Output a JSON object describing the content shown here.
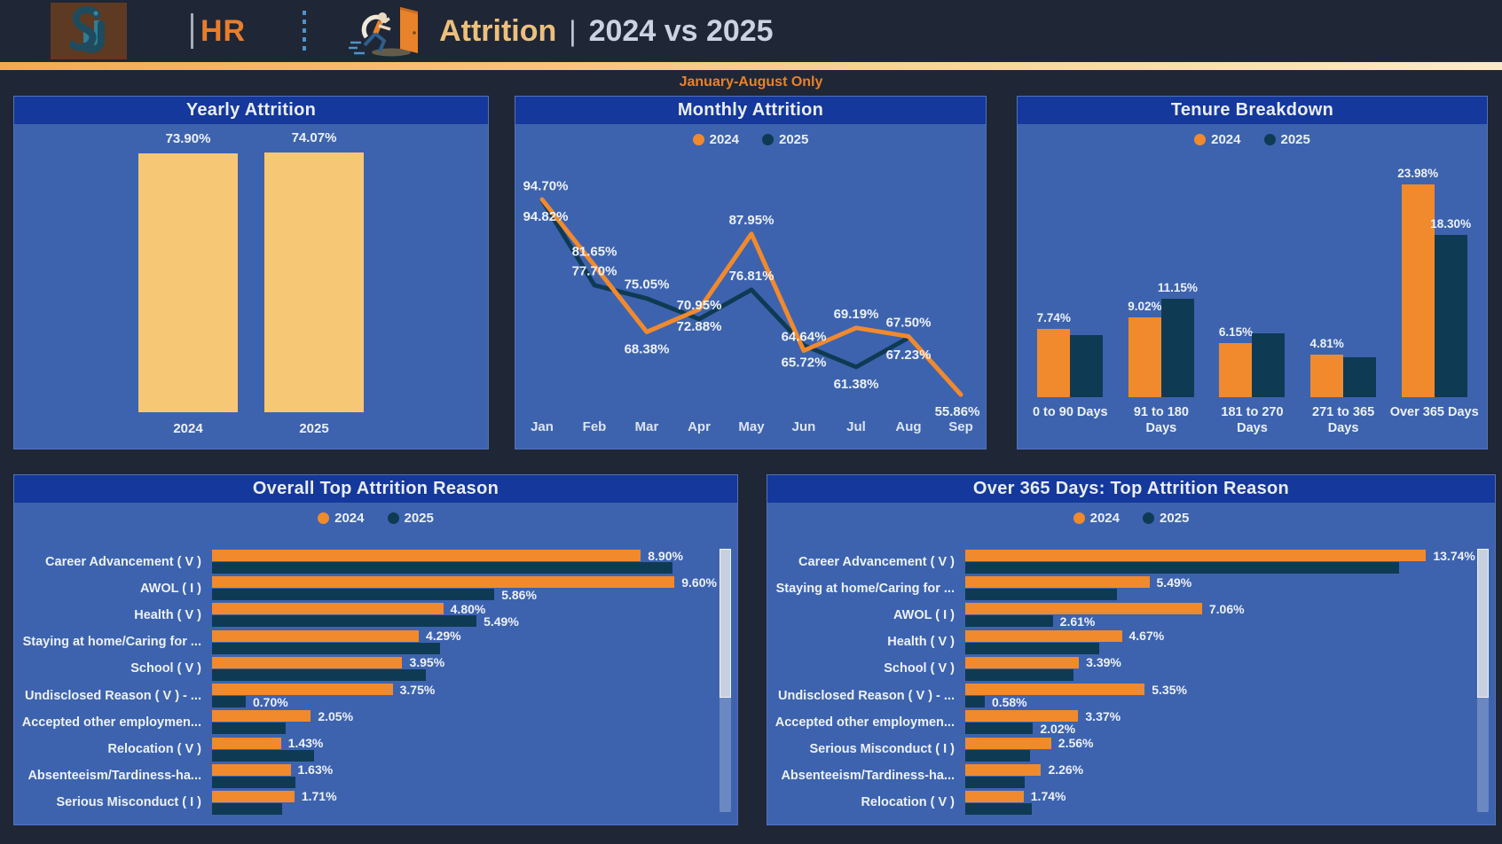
{
  "app": {
    "logo_text": "SJ",
    "department": "HR",
    "title": "Attrition",
    "title_separator": "|",
    "title_comparison": "2024 vs 2025",
    "subtitle": "January-August Only"
  },
  "colors": {
    "background": "#1F2636",
    "panel": "#3D63AF",
    "panel_header": "#14389B",
    "accent_2024": "#F18A2C",
    "accent_2025": "#0E3B53",
    "gold_bar": "#F6C775",
    "gold_strip": "#F6C87E",
    "subtitle_orange": "#E8822B",
    "label_text": "#EDF1F8"
  },
  "legend": {
    "items": [
      {
        "name": "2024",
        "color": "#F18A2C"
      },
      {
        "name": "2025",
        "color": "#0E3B53"
      }
    ]
  },
  "chart_data": [
    {
      "id": "yearly",
      "type": "bar",
      "title": "Yearly Attrition",
      "categories": [
        "2024",
        "2025"
      ],
      "values": [
        73.9,
        74.07
      ],
      "data_labels": [
        "73.90%",
        "74.07%"
      ],
      "bar_color": "#F6C775",
      "ylim": [
        0,
        80
      ],
      "legend": false
    },
    {
      "id": "monthly",
      "type": "line",
      "title": "Monthly Attrition",
      "categories": [
        "Jan",
        "Feb",
        "Mar",
        "Apr",
        "May",
        "Jun",
        "Jul",
        "Aug",
        "Sep"
      ],
      "series": [
        {
          "name": "2024",
          "color": "#F18A2C",
          "values": [
            94.82,
            81.65,
            68.38,
            72.88,
            87.95,
            64.64,
            69.19,
            67.5,
            55.86
          ],
          "data_labels": [
            "94.82%",
            "81.65%",
            "68.38%",
            "72.88%",
            "87.95%",
            "64.64%",
            "69.19%",
            "67.50%",
            "55.86%"
          ]
        },
        {
          "name": "2025",
          "color": "#0E3B53",
          "values": [
            94.7,
            77.7,
            75.05,
            70.95,
            76.81,
            65.72,
            61.38,
            67.23,
            null
          ],
          "data_labels": [
            "94.70%",
            "77.70%",
            "75.05%",
            "70.95%",
            "76.81%",
            "65.72%",
            "61.38%",
            "67.23%",
            ""
          ]
        }
      ],
      "ylim": [
        50,
        100
      ],
      "legend": true
    },
    {
      "id": "tenure",
      "type": "bar",
      "title": "Tenure Breakdown",
      "categories": [
        "0 to 90 Days",
        "91 to 180 Days",
        "181 to 270 Days",
        "271 to 365 Days",
        "Over 365 Days"
      ],
      "series": [
        {
          "name": "2024",
          "color": "#F18A2C",
          "values": [
            7.74,
            9.02,
            6.15,
            4.81,
            23.98
          ],
          "data_labels": [
            "7.74%",
            "9.02%",
            "6.15%",
            "4.81%",
            "23.98%"
          ]
        },
        {
          "name": "2025",
          "color": "#0E3B53",
          "values": [
            7.05,
            11.15,
            7.25,
            4.55,
            18.3
          ],
          "data_labels": [
            "",
            "11.15%",
            "",
            "",
            "18.30%"
          ]
        }
      ],
      "ylim": [
        0,
        26
      ],
      "legend": true
    },
    {
      "id": "overall_reasons",
      "type": "bar_horizontal",
      "title": "Overall Top Attrition Reason",
      "categories": [
        "Career Advancement ( V )",
        "AWOL ( I )",
        "Health ( V )",
        "Staying at home/Caring for ...",
        "School ( V )",
        "Undisclosed Reason ( V ) - ...",
        "Accepted other employmen...",
        "Relocation ( V )",
        "Absenteeism/Tardiness-ha...",
        "Serious Misconduct ( I )"
      ],
      "series": [
        {
          "name": "2024",
          "color": "#F18A2C",
          "values": [
            8.9,
            9.6,
            4.8,
            4.29,
            3.95,
            3.75,
            2.05,
            1.43,
            1.63,
            1.71
          ],
          "data_labels": [
            "8.90%",
            "9.60%",
            "4.80%",
            "4.29%",
            "3.95%",
            "3.75%",
            "2.05%",
            "1.43%",
            "1.63%",
            "1.71%"
          ]
        },
        {
          "name": "2025",
          "color": "#0E3B53",
          "values": [
            9.55,
            5.86,
            5.49,
            4.74,
            4.43,
            0.7,
            1.52,
            2.12,
            1.73,
            1.45
          ],
          "data_labels": [
            "",
            "5.86%",
            "5.49%",
            "",
            "",
            "0.70%",
            "",
            "",
            "",
            ""
          ]
        }
      ],
      "xlim": [
        0,
        10.35
      ],
      "legend": true,
      "scrollbar": true
    },
    {
      "id": "over365_reasons",
      "type": "bar_horizontal",
      "title": "Over 365 Days: Top Attrition Reason",
      "categories": [
        "Career Advancement ( V )",
        "Staying at home/Caring for ...",
        "AWOL ( I )",
        "Health ( V )",
        "School ( V )",
        "Undisclosed Reason ( V ) - ...",
        "Accepted other employmen...",
        "Serious Misconduct ( I )",
        "Absenteeism/Tardiness-ha...",
        "Relocation ( V )"
      ],
      "series": [
        {
          "name": "2024",
          "color": "#F18A2C",
          "values": [
            13.74,
            5.49,
            7.06,
            4.67,
            3.39,
            5.35,
            3.37,
            2.56,
            2.26,
            1.74
          ],
          "data_labels": [
            "13.74%",
            "5.49%",
            "7.06%",
            "4.67%",
            "3.39%",
            "5.35%",
            "3.37%",
            "2.56%",
            "2.26%",
            "1.74%"
          ]
        },
        {
          "name": "2025",
          "color": "#0E3B53",
          "values": [
            12.95,
            4.53,
            2.61,
            4.0,
            3.22,
            0.58,
            2.02,
            1.92,
            1.78,
            1.99
          ],
          "data_labels": [
            "",
            "",
            "2.61%",
            "",
            "",
            "0.58%",
            "2.02%",
            "",
            "",
            ""
          ]
        }
      ],
      "xlim": [
        0,
        15.0
      ],
      "legend": true,
      "scrollbar": true
    }
  ]
}
